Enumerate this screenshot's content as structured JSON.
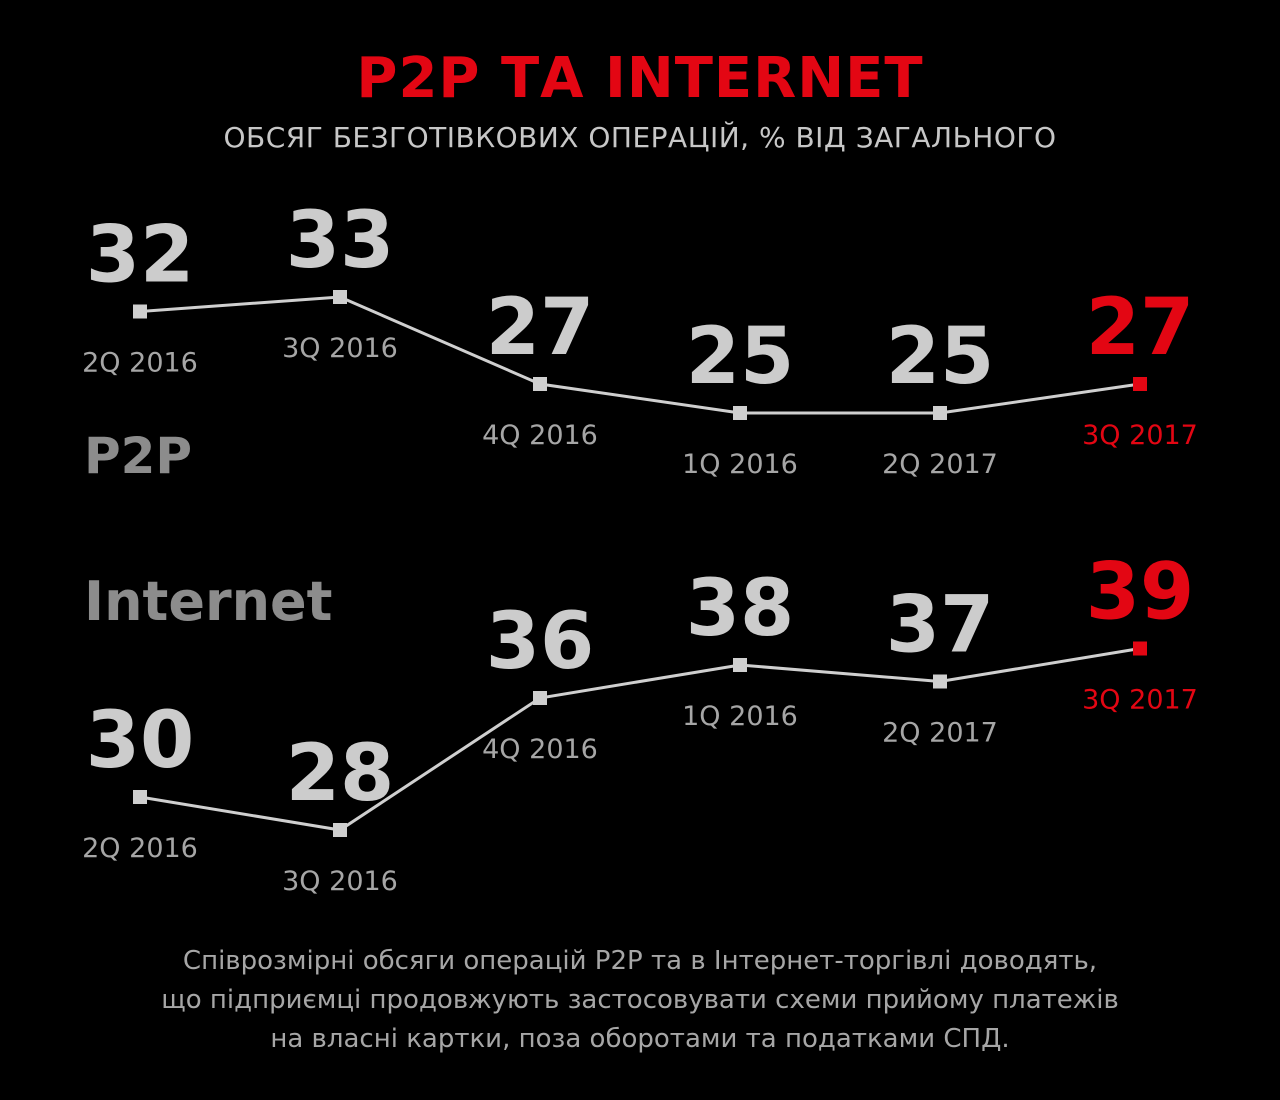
{
  "colors": {
    "background": "#000000",
    "accent": "#e30613",
    "value": "#cccccc",
    "label": "#a6a6a6",
    "series_label": "#8c8c8c",
    "line": "#cfcfcf",
    "text": "#c7c7c7"
  },
  "header": {
    "title": "P2P ТА INTERNET",
    "subtitle": "ОБСЯГ БЕЗГОТІВКОВИХ ОПЕРАЦІЙ, % ВІД ЗАГАЛЬНОГО"
  },
  "chart_data": {
    "type": "line",
    "title": "P2P ТА INTERNET",
    "subtitle": "ОБСЯГ БЕЗГОТІВКОВИХ ОПЕРАЦІЙ, % ВІД ЗАГАЛЬНОГО",
    "grid": false,
    "highlight_last_point": true,
    "series": [
      {
        "name": "P2P",
        "categories": [
          "2Q 2016",
          "3Q 2016",
          "4Q 2016",
          "1Q 2016",
          "2Q 2017",
          "3Q 2017"
        ],
        "values": [
          32,
          33,
          27,
          25,
          25,
          27
        ]
      },
      {
        "name": "Internet",
        "categories": [
          "2Q 2016",
          "3Q 2016",
          "4Q 2016",
          "1Q 2016",
          "2Q 2017",
          "3Q 2017"
        ],
        "values": [
          30,
          28,
          36,
          38,
          37,
          39
        ]
      }
    ]
  },
  "footer": {
    "lines": [
      "Співрозмірні обсяги операцій P2P та в Інтернет-торгівлі доводять,",
      "що підприємці продовжують застосовувати схеми прийому платежів",
      "на власні картки, поза оборотами та податками СПД."
    ]
  }
}
